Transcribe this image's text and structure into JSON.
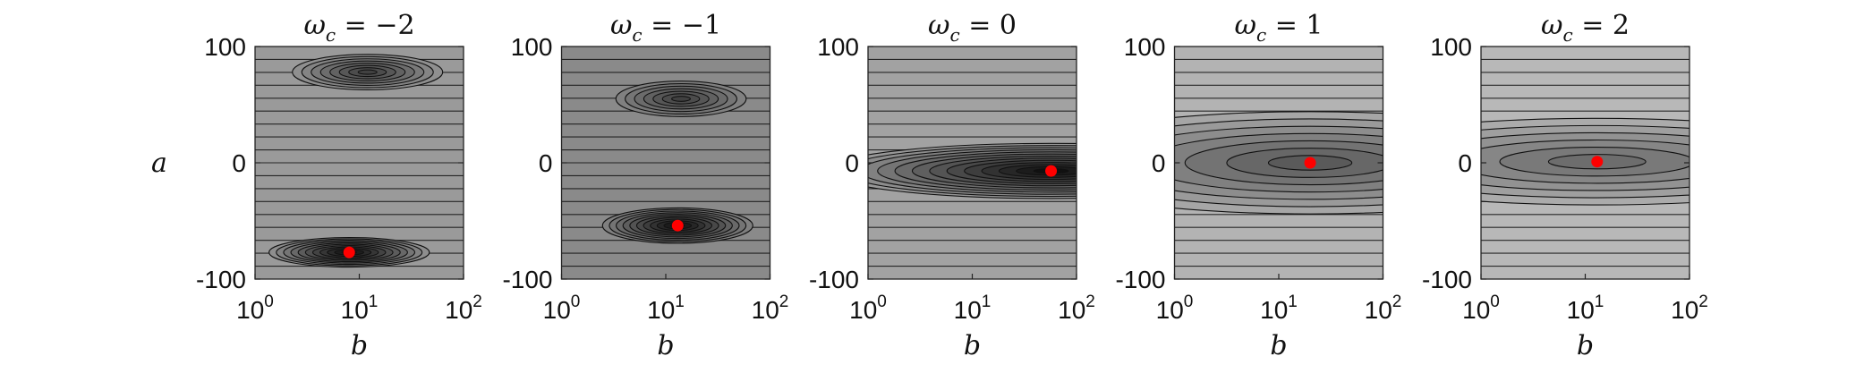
{
  "figure": {
    "ylabel": "a",
    "xlabel": "b"
  },
  "chart_data": [
    {
      "type": "contour",
      "title": "ω_c = −2",
      "title_var": "ω",
      "title_sub": "c",
      "title_rhs": " = −2",
      "xlabel": "b",
      "ylabel": "a",
      "xscale": "log",
      "xlim": [
        1,
        100
      ],
      "ylim": [
        -100,
        100
      ],
      "x_ticks": [
        {
          "base": "10",
          "exp": "0"
        },
        {
          "base": "10",
          "exp": "1"
        },
        {
          "base": "10",
          "exp": "2"
        }
      ],
      "y_ticks": [
        "100",
        "0",
        "-100"
      ],
      "y_tick_values": [
        100,
        0,
        -100
      ],
      "background": "#9a9a9a",
      "optimum": {
        "b": 8,
        "a": -77
      },
      "minima": [
        {
          "b": 8,
          "a": -77,
          "depth": 1.0,
          "levels": 11,
          "sb": 3.2,
          "sa": 7.5
        },
        {
          "b": 12,
          "a": 78,
          "depth": 0.65,
          "levels": 8,
          "sb": 3.0,
          "sa": 9
        }
      ]
    },
    {
      "type": "contour",
      "title": "ω_c = −1",
      "title_var": "ω",
      "title_sub": "c",
      "title_rhs": " = −1",
      "xlabel": "b",
      "ylabel": "",
      "xscale": "log",
      "xlim": [
        1,
        100
      ],
      "ylim": [
        -100,
        100
      ],
      "x_ticks": [
        {
          "base": "10",
          "exp": "0"
        },
        {
          "base": "10",
          "exp": "1"
        },
        {
          "base": "10",
          "exp": "2"
        }
      ],
      "y_ticks": [
        "100",
        "0",
        "-100"
      ],
      "y_tick_values": [
        100,
        0,
        -100
      ],
      "background": "#8a8a8a",
      "optimum": {
        "b": 13,
        "a": -54
      },
      "minima": [
        {
          "b": 13,
          "a": -54,
          "depth": 1.0,
          "levels": 11,
          "sb": 3.0,
          "sa": 9
        },
        {
          "b": 14,
          "a": 55,
          "depth": 0.6,
          "levels": 7,
          "sb": 2.6,
          "sa": 9
        }
      ]
    },
    {
      "type": "contour",
      "title": "ω_c = 0",
      "title_var": "ω",
      "title_sub": "c",
      "title_rhs": " = 0",
      "xlabel": "b",
      "ylabel": "",
      "xscale": "log",
      "xlim": [
        1,
        100
      ],
      "ylim": [
        -100,
        100
      ],
      "x_ticks": [
        {
          "base": "10",
          "exp": "0"
        },
        {
          "base": "10",
          "exp": "1"
        },
        {
          "base": "10",
          "exp": "2"
        }
      ],
      "y_ticks": [
        "100",
        "0",
        "-100"
      ],
      "y_tick_values": [
        100,
        0,
        -100
      ],
      "background": "#a2a2a2",
      "optimum": {
        "b": 57,
        "a": -7
      },
      "minima": [
        {
          "b": 57,
          "a": -7,
          "depth": 1.0,
          "levels": 13,
          "sb": 9,
          "sa": 14
        }
      ]
    },
    {
      "type": "contour",
      "title": "ω_c = 1",
      "title_var": "ω",
      "title_sub": "c",
      "title_rhs": " = 1",
      "xlabel": "b",
      "ylabel": "",
      "xscale": "log",
      "xlim": [
        1,
        100
      ],
      "ylim": [
        -100,
        100
      ],
      "x_ticks": [
        {
          "base": "10",
          "exp": "0"
        },
        {
          "base": "10",
          "exp": "1"
        },
        {
          "base": "10",
          "exp": "2"
        }
      ],
      "y_ticks": [
        "100",
        "0",
        "-100"
      ],
      "y_tick_values": [
        100,
        0,
        -100
      ],
      "background": "#b3b3b3",
      "optimum": {
        "b": 20,
        "a": 0
      },
      "minima": [
        {
          "b": 20,
          "a": 0,
          "depth": 0.55,
          "levels": 7,
          "sb": 1000,
          "sa": 26
        }
      ]
    },
    {
      "type": "contour",
      "title": "ω_c = 2",
      "title_var": "ω",
      "title_sub": "c",
      "title_rhs": " = 2",
      "xlabel": "b",
      "ylabel": "",
      "xscale": "log",
      "xlim": [
        1,
        100
      ],
      "ylim": [
        -100,
        100
      ],
      "x_ticks": [
        {
          "base": "10",
          "exp": "0"
        },
        {
          "base": "10",
          "exp": "1"
        },
        {
          "base": "10",
          "exp": "2"
        }
      ],
      "y_ticks": [
        "100",
        "0",
        "-100"
      ],
      "y_tick_values": [
        100,
        0,
        -100
      ],
      "background": "#b8b8b8",
      "optimum": {
        "b": 13,
        "a": 1
      },
      "minima": [
        {
          "b": 13,
          "a": 1,
          "depth": 0.45,
          "levels": 6,
          "sb": 1000,
          "sa": 22
        }
      ]
    }
  ],
  "colors": {
    "contour_line": "#111111",
    "optimum_marker": "#ff0000",
    "axis": "#222222",
    "fill_dark": "#111111"
  }
}
